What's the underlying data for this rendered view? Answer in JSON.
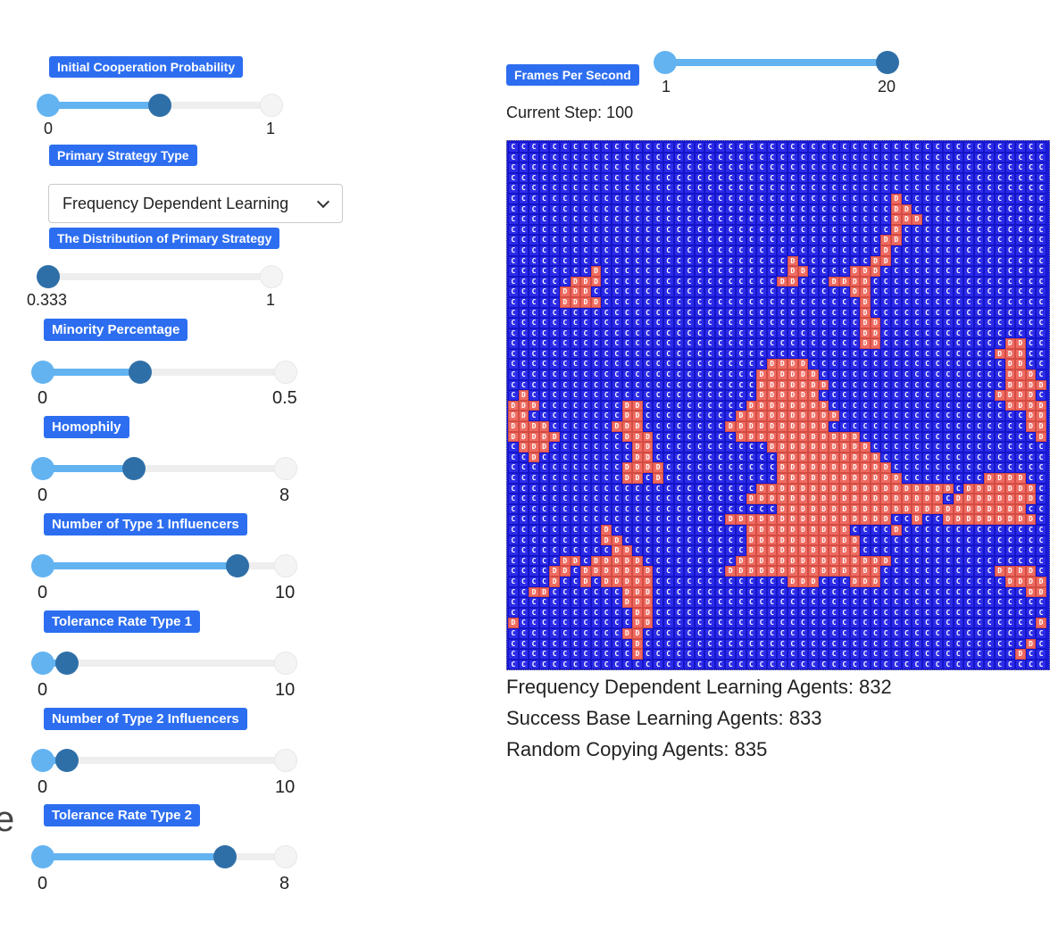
{
  "controls": {
    "initial_cooperation": {
      "label": "Initial Cooperation Probability",
      "min": "0",
      "max": "1",
      "value_fraction": 0.5
    },
    "primary_strategy": {
      "label": "Primary Strategy Type",
      "selected": "Frequency Dependent Learning"
    },
    "distribution": {
      "label": "The Distribution of Primary Strategy",
      "min": "0.333",
      "max": "1",
      "value_fraction": 0.0
    },
    "minority": {
      "label": "Minority Percentage",
      "min": "0",
      "max": "0.5",
      "value_fraction": 0.4
    },
    "homophily": {
      "label": "Homophily",
      "min": "0",
      "max": "8",
      "value_fraction": 0.375
    },
    "type1_influencers": {
      "label": "Number of Type 1 Influencers",
      "min": "0",
      "max": "10",
      "value_fraction": 0.8
    },
    "tolerance1": {
      "label": "Tolerance Rate Type 1",
      "min": "0",
      "max": "10",
      "value_fraction": 0.1
    },
    "type2_influencers": {
      "label": "Number of Type 2 Influencers",
      "min": "0",
      "max": "10",
      "value_fraction": 0.1
    },
    "tolerance2": {
      "label": "Tolerance Rate Type 2",
      "min": "0",
      "max": "8",
      "value_fraction": 0.75
    }
  },
  "fps": {
    "label": "Frames Per Second",
    "min": "1",
    "max": "20",
    "value_fraction": 1.0
  },
  "current_step": "Current Step: 100",
  "stats": {
    "frequency": "Frequency Dependent Learning Agents: 832",
    "success": "Success Base Learning Agents: 833",
    "random": "Random Copying Agents: 835"
  },
  "cut_off_text": "e",
  "grid": {
    "cooperate_char": "C",
    "defect_char": "D",
    "colors": {
      "cooperate": "#2b2be8",
      "defect": "#ef6b61"
    },
    "rows": [
      "CCCCCCCCCCCCCCCCCCCCCCCCCCCCCCCCCCCCCCCCCCCCCCCCCCCC",
      "CCCCCCCCCCCCCCCCCCCCCCCCCCCCCCCCCCCCCCCCCCCCCCCCCCCC",
      "CCCCCCCCCCCCCCCCCCCCCCCCCCCCCCCCCCCCCCCCCCCCCCCCCCCC",
      "CCCCCCCCCCCCCCCCCCCCCCCCCCCCCCCCCCCCCCCCCCCCCCCCCCCC",
      "CCCCCCCCCCCCCCCCCCCCCCCCCCCCCCCCCCCCCCCCCCCCCCCCCCCC",
      "CCCCCCCCCCCCCCCCCCCCCCCCCCCCCCCCCCCCCDCCCCCCCCCCCCCC",
      "CCCCCCCCCCCCCCCCCCCCCCCCCCCCCCCCCCCCCDDCCCCCCCCCCCCC",
      "CCCCCCCCCCCCCCCCCCCCCCCCCCCCCCCCCCCCCDDDCCCCCCCCCCCC",
      "CCCCCCCCCCCCCCCCCCCCCCCCCCCCCCCCCCCCCDCCCCCCCCCCCCCC",
      "CCCCCCCCCCCCCCCCCCCCCCCCCCCCCCCCCCCCDDCCCCCCCCCCCCCC",
      "CCCCCCCCCCCCCCCCCCCCCCCCCCCCCCCCCCCCDCCCCCCCCCCCCCCC",
      "CCCCCCCCCCCCCCCCCCCCCCCCCCCDCCCCCCCDDCCCCCCCCCCCCCCC",
      "CCCCCCCCDCCCCCCCCCCCCCCCCCCDDCCCCDDDCCCCCCCCCCCCCCCC",
      "CCCCCCDDDCCCCCCCCCCCCCCCCCDDCCCDDDDCCCCCCCCCCCCCCCCC",
      "CCCCCDDDCCCCCCCCCCCCCCCCCCCCCCCCCDDCCCCCCCCCCCCCCCCC",
      "CCCCCDDDDCCCCCCCCCCCCCCCCCCCCCCCCCDCCCCCCCCCCCCCCCCC",
      "CCCCCCCCCCCCCCCCCCCCCCCCCCCCCCCCCCDCCCCCCCCCCCCCCCCC",
      "CCCCCCCCCCCCCCCCCCCCCCCCCCCCCCCCCCDDCCCCCCCCCCCCCCCC",
      "CCCCCCCCCCCCCCCCCCCCCCCCCCCCCCCCCCDDCCCCCCCCCCCCCCCC",
      "CCCCCCCCCCCCCCCCCCCCCCCCCCCCCCCCCCDDCCCCCCCCCCCCDDCC",
      "CCCCCCCCCCCCCCCCCCCCCCCCCCCCCCCCCCCCCCCCCCCCCCCDDDCC",
      "CCCCCCCCCCCCCCCCCCCCCCCCCDDDDCCCCCCCCCCCCCCCCCCCDDCC",
      "CCCCCCCCCCCCCCCCCCCCCCCCDDDDDDCCCCCCCCCCCCCCCCCCDDDC",
      "CCCCCCCCCCCCCCCCCCCCCCCCDDDDDDDCCCCCCCCCCCCCCCCCDDDD",
      "CDCCCCCCCCCCCCCCCCCCCCCCDDDDDDCCCCCCCCCCCCCCCCCDDDDC",
      "DDDCCCCCCCCDDCCCCCCCCCCDDDDDDDDCCCCCCCCCCCCCCCCCDDDD",
      "DDCCCCCCCCCDDCCCCCCCCCDDDDDDDDDDCCCCCCCCCCCCCCCCCCDD",
      "DDDDCCCCCCDDDCCCCCCCCDDDDDDDDDDCCCCCCCCCCCCCCCCCCCDD",
      "DDDDDCCCCCCDDDCCCCCCCCDDDDDDDDDDDDCCCCCCCCCCCCCCCCCD",
      "CDDDCCCCCCCCDDCCCCCCCCCCCDDDDDDDDDDCCCCCCCCCCCCCCCCC",
      "CCDCCCCCCCCCDDCCCCCCCCCCCCDDDDDDDDDDCCCCCCCCCCCCCCCC",
      "CCCCCCCCCCCDDDDCCCCCCCCCCCDDDDDDDDDDDCCCCCCCCCCCCCCC",
      "CCCCCCCCCCCDDCDCCCCCCCCCCCDDDDDDDDDDDDCCCCCCCCDDDDCC",
      "CCCCCCCCCCCCCCCCCCCCCCCCDDDDDDDDDDDDDDDDDDDCDDDDDDDC",
      "CCCCCCCCCCCCCCCCCCCCCCCDDDDDDDDDDDDDDDDDDDCDDDDDDDDC",
      "CCCCCCCCCCCCCCCCCCCCCCCCCCDDDDDDDDDDDDDDDDDDDDDDDDCC",
      "CCCCCCCCCCCCCCCCCCCCCDDDDDDDDDDDDDDDDCCDCCDDDDDDDDDC",
      "CCCCCCCCCDCCCCCCCCCCCCCDDDDDDDDDDCCCCDCCCCCCCCCCCCCC",
      "CCCCCCCCCDDCCCCCCCCCCCCDDDDDDDDDDDCCCCCCCCCCCCCCCCCC",
      "CCCCCCCCCCDDCCCCCCCCCCCDDDDDDDDDDDCCCCCCCCCCCCCCCCCC",
      "CCCCCDDCDDDDDCCCCCCCCCDDDDDDDDDDDDDDDCCCCCCCCCCCCCCC",
      "CCCCDDCDDDDDDDCCCCCCCDDDDDDDDDDDDDDDCCCCCCCCCCCDDDDC",
      "CCCCDCCDCDDDDDCCCCCCCCCCCCCDDDCCCDDDCCCCCCCCCCCCDDDD",
      "CCDDCCCCCCCDDDCCCCCCCCCCCCCCCCCCCCCCCCCCCCCCCCCCCCDD",
      "CCCCCCCCCCCDDDCCCCCCCCCCCCCCCCCCCCCCCCCCCCCCCCCCCCCC",
      "CCCCCCCCCCCCDDCCCCCCCCCCCCCCCCCCCCCCCCCCCCCCCCCCCCCC",
      "DCCCCCCCCCCCDDCCCCCCCCCCCCCCCCCCCCCCCCCCCCCCCCCCCCCD",
      "CCCCCCCCCCCDDCCCCCCCCCCCCCCCCCCCCCCCCCCCCCCCCCCCCCCC",
      "CCCCCCCCCCCCDCCCCCCCCCCCCCCCCCCCCCCCCCCCCCCCCCCCCCDC",
      "CCCCCCCCCCCCDCCCCCCCCCCCCCCCCCCCCCCCCCCCCCCCCCCCCDCC",
      "CCCCCCCCCCCCCCCCCCCCCCCCCCCCCCCCCCCCCCCCCCCCCCCCCCCC"
    ]
  }
}
